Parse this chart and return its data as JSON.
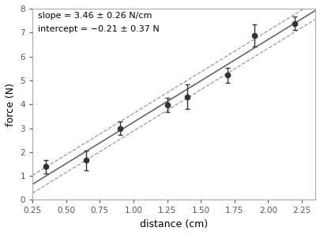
{
  "x": [
    0.35,
    0.65,
    0.9,
    1.25,
    1.4,
    1.7,
    1.9,
    2.2
  ],
  "y": [
    1.4,
    1.65,
    3.0,
    3.98,
    4.32,
    5.22,
    6.88,
    7.38
  ],
  "xerr": [
    0.0,
    0.0,
    0.0,
    0.0,
    0.0,
    0.0,
    0.0,
    0.0
  ],
  "yerr": [
    0.28,
    0.42,
    0.28,
    0.3,
    0.52,
    0.32,
    0.45,
    0.28
  ],
  "slope": 3.46,
  "slope_err": 0.26,
  "intercept": -0.21,
  "intercept_err": 0.37,
  "xlabel": "distance (cm)",
  "ylabel": "force (N)",
  "xlim": [
    0.25,
    2.35
  ],
  "ylim": [
    0.0,
    8.0
  ],
  "annotation_line1": "slope = 3.46 ± 0.26 N/cm",
  "annotation_line2": "intercept = −0.21 ± 0.37 N",
  "fit_color": "#666666",
  "dash_color": "#999999",
  "data_color": "#333333",
  "background_color": "#ffffff"
}
